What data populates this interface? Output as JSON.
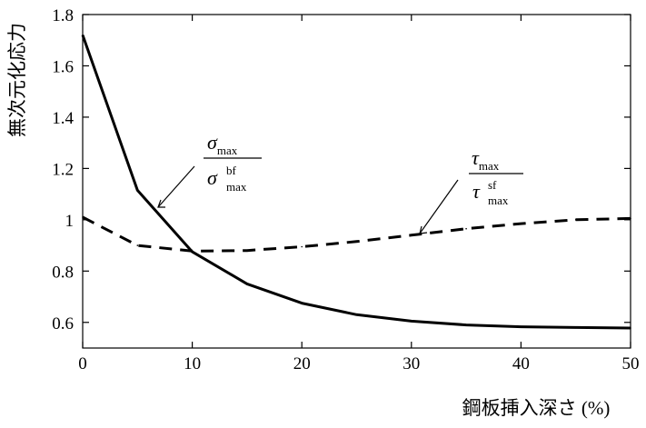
{
  "chart_data": {
    "type": "line",
    "xlabel": "鋼板挿入深さ (%)",
    "ylabel": "無次元化応力",
    "xlim": [
      0,
      50
    ],
    "ylim": [
      0.5,
      1.8
    ],
    "xticks": [
      0,
      10,
      20,
      30,
      40,
      50
    ],
    "xtick_labels": [
      "0",
      "10",
      "20",
      "30",
      "40",
      "50"
    ],
    "yticks": [
      0.6,
      0.8,
      1.0,
      1.2,
      1.4,
      1.6,
      1.8
    ],
    "ytick_labels": [
      "0.6",
      "0.8",
      "1",
      "1.2",
      "1.4",
      "1.6",
      "1.8"
    ],
    "grid": false,
    "series": [
      {
        "style": "solid",
        "x": [
          0,
          5,
          10,
          15,
          20,
          25,
          30,
          35,
          40,
          45,
          50
        ],
        "values": [
          1.72,
          1.115,
          0.875,
          0.75,
          0.675,
          0.63,
          0.605,
          0.59,
          0.583,
          0.58,
          0.578
        ]
      },
      {
        "style": "dashed",
        "x": [
          0,
          5,
          10,
          15,
          20,
          25,
          30,
          35,
          40,
          45,
          50
        ],
        "values": [
          1.01,
          0.9,
          0.878,
          0.88,
          0.895,
          0.915,
          0.94,
          0.965,
          0.985,
          1.0,
          1.005
        ]
      }
    ],
    "annotations": [
      {
        "target": "solid",
        "numerator": {
          "sym": "σ",
          "sub": "max"
        },
        "denominator": {
          "sym": "σ",
          "sub": "max",
          "sup": "bf"
        }
      },
      {
        "target": "dashed",
        "numerator": {
          "sym": "τ",
          "sub": "max"
        },
        "denominator": {
          "sym": "τ",
          "sub": "max",
          "sup": "sf"
        }
      }
    ]
  }
}
